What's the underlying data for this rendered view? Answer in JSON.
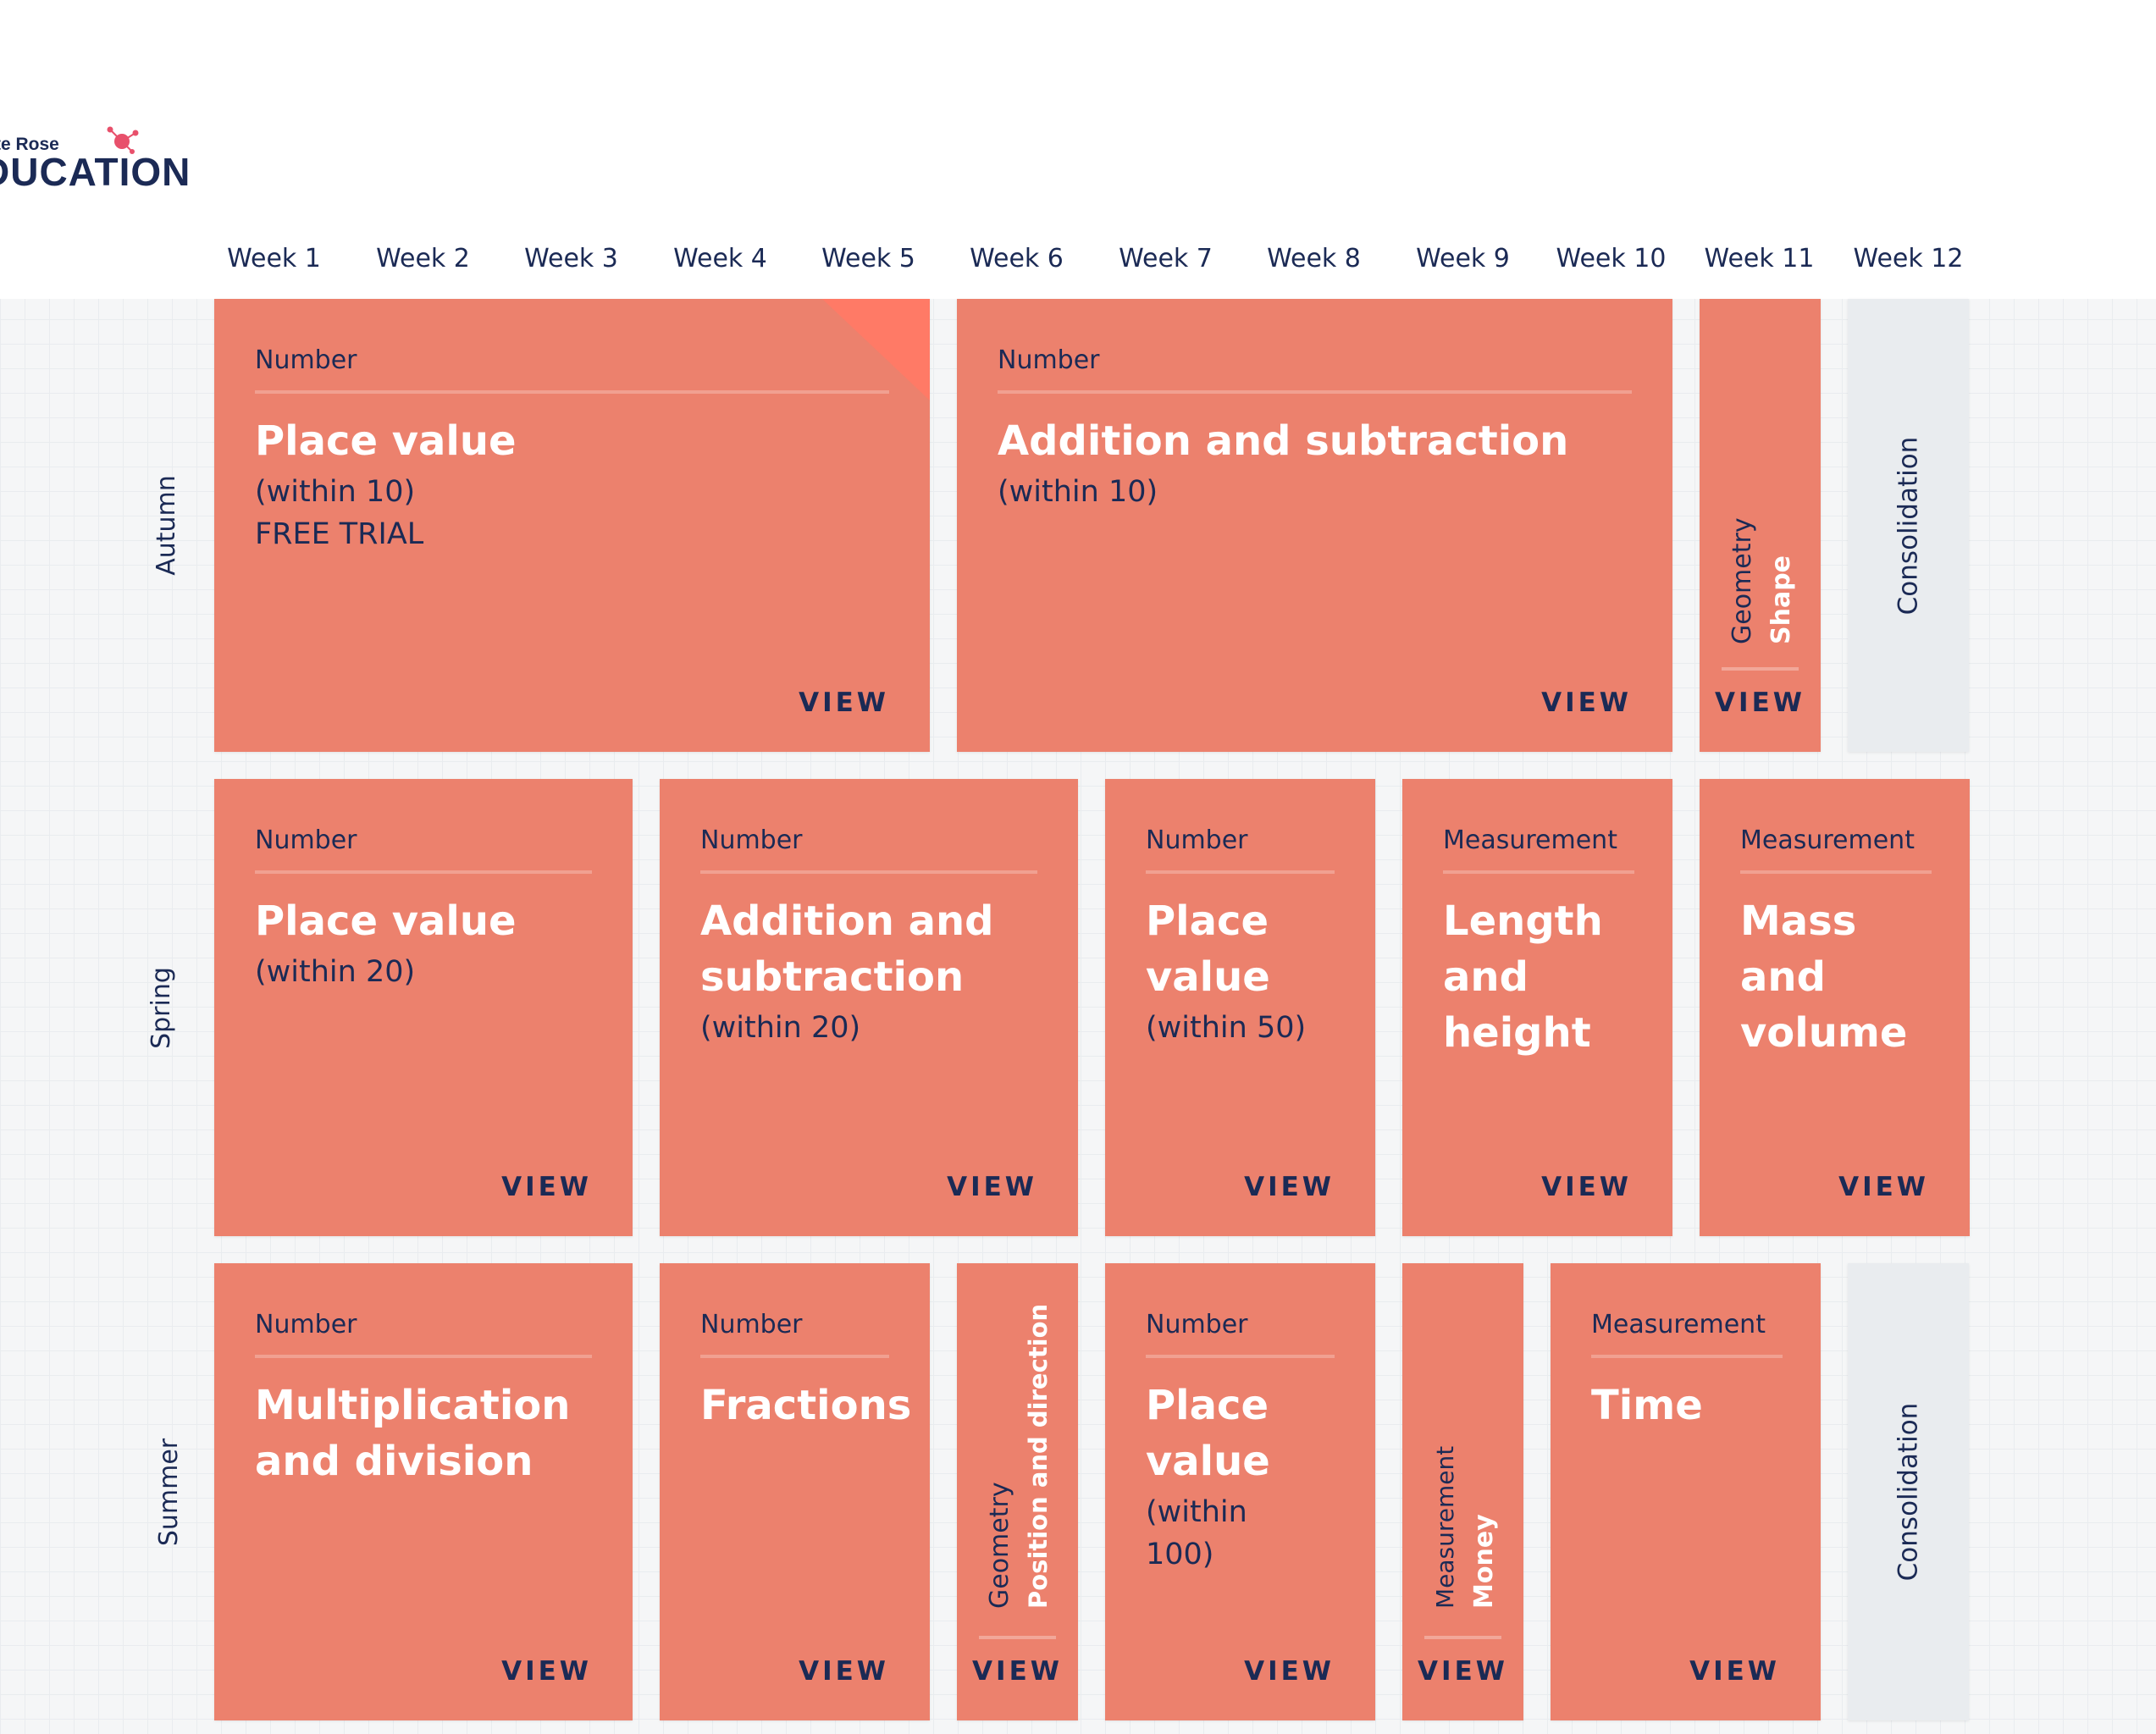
{
  "brand": {
    "logo_top": "te Rose",
    "logo_bottom": "DUCATION"
  },
  "weeks": [
    "Week 1",
    "Week 2",
    "Week 3",
    "Week 4",
    "Week 5",
    "Week 6",
    "Week 7",
    "Week 8",
    "Week 9",
    "Week 10",
    "Week 11",
    "Week 12"
  ],
  "terms": [
    "Autumn",
    "Spring",
    "Summer"
  ],
  "colors": {
    "card": "#ec816d",
    "text_dark": "#1b2a55",
    "consolidation": "#e9ecef"
  },
  "view_label": "VIEW",
  "autumn": {
    "card1": {
      "category": "Number",
      "title": "Place value",
      "sub": "(within 10)",
      "note": "FREE TRIAL"
    },
    "card2": {
      "category": "Number",
      "title": "Addition and subtraction",
      "sub": "(within 10)"
    },
    "card3": {
      "category": "Geometry",
      "title": "Shape"
    },
    "consolidation": "Consolidation"
  },
  "spring": {
    "card1": {
      "category": "Number",
      "title": "Place value",
      "sub": "(within 20)"
    },
    "card2": {
      "category": "Number",
      "title": "Addition and subtraction",
      "sub": "(within 20)"
    },
    "card3": {
      "category": "Number",
      "title": "Place value",
      "sub": "(within 50)"
    },
    "card4": {
      "category": "Measurement",
      "title": "Length and height"
    },
    "card5": {
      "category": "Measurement",
      "title": "Mass and volume"
    }
  },
  "summer": {
    "card1": {
      "category": "Number",
      "title": "Multiplication and division"
    },
    "card2": {
      "category": "Number",
      "title": "Fractions"
    },
    "card3": {
      "category": "Geometry",
      "title": "Position and direction"
    },
    "card4": {
      "category": "Number",
      "title": "Place value",
      "sub": "(within 100)"
    },
    "card5": {
      "category": "Measurement",
      "title": "Money"
    },
    "card6": {
      "category": "Measurement",
      "title": "Time"
    },
    "consolidation": "Consolidation"
  }
}
